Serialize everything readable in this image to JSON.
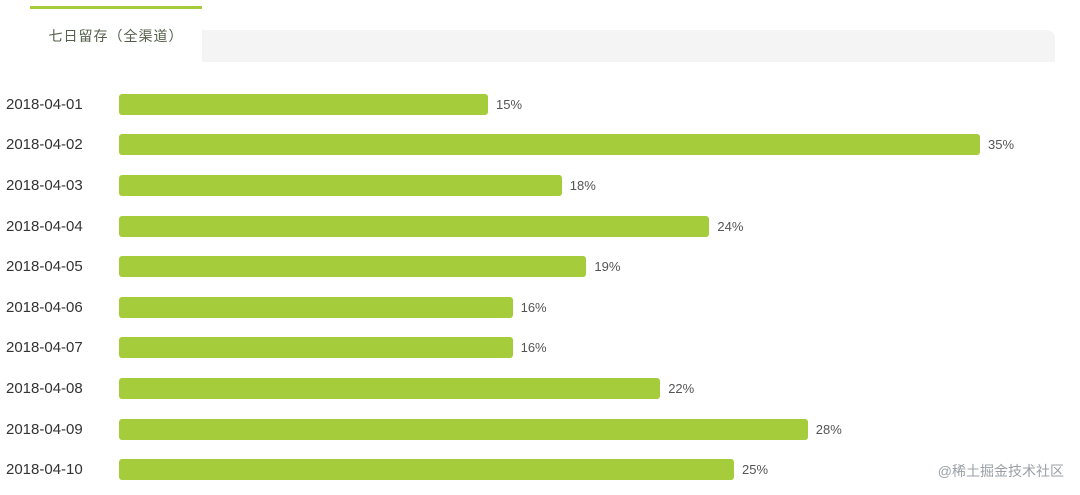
{
  "tab": {
    "label": "七日留存（全渠道）"
  },
  "watermark": "@稀土掘金技术社区",
  "colors": {
    "bar": "#a5cd3b",
    "tab_accent": "#a5cd3b",
    "header_strip": "#f4f4f4"
  },
  "chart_data": {
    "type": "bar",
    "orientation": "horizontal",
    "title": "七日留存（全渠道）",
    "xlabel": "",
    "ylabel": "",
    "categories": [
      "2018-04-01",
      "2018-04-02",
      "2018-04-03",
      "2018-04-04",
      "2018-04-05",
      "2018-04-06",
      "2018-04-07",
      "2018-04-08",
      "2018-04-09",
      "2018-04-10"
    ],
    "values": [
      15,
      35,
      18,
      24,
      19,
      16,
      16,
      22,
      28,
      25
    ],
    "value_suffix": "%",
    "xlim": [
      0,
      37
    ],
    "grid": false,
    "legend": false,
    "bar_color": "#a5cd3b"
  }
}
